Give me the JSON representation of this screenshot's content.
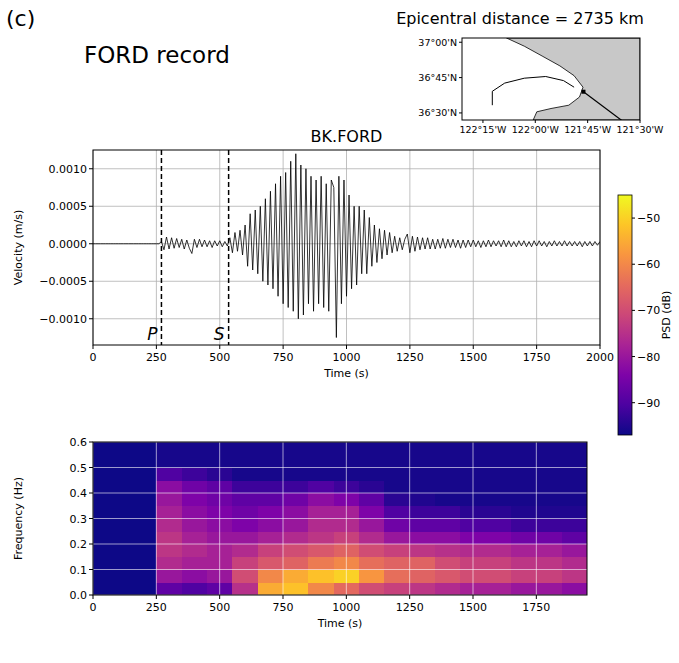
{
  "panel_label": "(c)",
  "title": "FORD record",
  "map": {
    "title": "Epicentral distance = 2735 km",
    "xlim": [
      -122.35,
      -121.5
    ],
    "ylim": [
      36.45,
      37.03
    ],
    "xticks": [
      {
        "value": -122.25,
        "label": "122°15'W"
      },
      {
        "value": -122,
        "label": "122°00'W"
      },
      {
        "value": -121.75,
        "label": "121°45'W"
      },
      {
        "value": -121.5,
        "label": "121°30'W"
      }
    ],
    "yticks": [
      {
        "value": 37,
        "label": "37°00'N"
      },
      {
        "value": 36.75,
        "label": "36°45'N"
      },
      {
        "value": 36.5,
        "label": "36°30'N"
      }
    ],
    "station": {
      "lon": -121.77,
      "lat": 36.65
    }
  },
  "chart_data": [
    {
      "type": "line",
      "title": "BK.FORD",
      "x_label": "Time (s)",
      "y_label": "Velocity (m/s)",
      "color": "#000000",
      "grid": true,
      "xlim": [
        0,
        2000
      ],
      "xticks": [
        0,
        250,
        500,
        750,
        1000,
        1250,
        1500,
        1750,
        2000
      ],
      "ylim": [
        -0.00135,
        0.00125
      ],
      "yticks": [
        {
          "value": -0.001,
          "label": "−0.0010"
        },
        {
          "value": -0.0005,
          "label": "−0.0005"
        },
        {
          "value": 0,
          "label": "0.0000"
        },
        {
          "value": 0.0005,
          "label": "0.0005"
        },
        {
          "value": 0.001,
          "label": "0.0010"
        }
      ],
      "annotations": [
        {
          "label": "P",
          "x": 270
        },
        {
          "label": "S",
          "x": 535
        }
      ],
      "x": [
        0,
        10,
        20,
        30,
        40,
        50,
        60,
        70,
        80,
        90,
        100,
        110,
        120,
        130,
        140,
        150,
        160,
        170,
        180,
        190,
        200,
        210,
        220,
        230,
        240,
        250,
        260,
        270,
        280,
        290,
        300,
        310,
        320,
        330,
        340,
        350,
        360,
        370,
        380,
        390,
        400,
        410,
        420,
        430,
        440,
        450,
        460,
        470,
        480,
        490,
        500,
        510,
        520,
        530,
        540,
        550,
        560,
        570,
        580,
        590,
        600,
        610,
        620,
        630,
        640,
        650,
        660,
        670,
        680,
        690,
        700,
        710,
        720,
        730,
        740,
        750,
        760,
        770,
        780,
        790,
        800,
        810,
        820,
        830,
        840,
        850,
        860,
        870,
        880,
        890,
        900,
        910,
        920,
        930,
        940,
        950,
        960,
        970,
        980,
        990,
        1000,
        1010,
        1020,
        1030,
        1040,
        1050,
        1060,
        1070,
        1080,
        1090,
        1100,
        1110,
        1120,
        1130,
        1140,
        1150,
        1160,
        1170,
        1180,
        1190,
        1200,
        1210,
        1220,
        1230,
        1240,
        1250,
        1260,
        1270,
        1280,
        1290,
        1300,
        1310,
        1320,
        1330,
        1340,
        1350,
        1360,
        1370,
        1380,
        1390,
        1400,
        1410,
        1420,
        1430,
        1440,
        1450,
        1460,
        1470,
        1480,
        1490,
        1500,
        1510,
        1520,
        1530,
        1540,
        1550,
        1560,
        1570,
        1580,
        1590,
        1600,
        1610,
        1620,
        1630,
        1640,
        1650,
        1660,
        1670,
        1680,
        1690,
        1700,
        1710,
        1720,
        1730,
        1740,
        1750,
        1760,
        1770,
        1780,
        1790,
        1800,
        1810,
        1820,
        1830,
        1840,
        1850,
        1860,
        1870,
        1880,
        1890,
        1900,
        1910,
        1920,
        1930,
        1940,
        1950,
        1960,
        1970,
        1980,
        1990,
        2000
      ],
      "values": [
        0,
        0,
        0,
        0,
        0,
        0,
        0,
        0,
        0,
        0,
        0,
        0,
        0,
        0,
        0,
        0,
        0,
        0,
        0,
        0,
        0,
        0,
        0,
        0,
        0,
        0,
        0,
        3e-05,
        -8e-05,
        9e-05,
        -7e-05,
        8e-05,
        -6e-05,
        7e-05,
        -5e-05,
        6e-05,
        -7e-05,
        5e-05,
        -6e-05,
        -0.00013,
        6e-05,
        -5e-05,
        6e-05,
        -4e-05,
        5e-05,
        -4e-05,
        4e-05,
        -5e-05,
        4e-05,
        -3e-05,
        4e-05,
        -4e-05,
        3e-05,
        -3e-05,
        8e-05,
        -0.00012,
        0.00015,
        -0.0001,
        0.00018,
        -0.00015,
        0.00025,
        -0.0003,
        0.0004,
        -0.00035,
        0.00045,
        -0.0004,
        0.0005,
        -0.0005,
        0.0006,
        -0.00055,
        0.0007,
        -0.0006,
        0.0008,
        -0.0007,
        0.0009,
        -0.0008,
        0.00095,
        -0.00085,
        0.0011,
        -0.0009,
        0.0012,
        -0.001,
        0.00105,
        -0.00095,
        0.001,
        -0.0008,
        0.0009,
        -0.0009,
        0.00085,
        -0.0008,
        0.0009,
        -0.00085,
        0.0008,
        -0.0009,
        0.00085,
        0.00075,
        -0.00125,
        0.0009,
        -0.0008,
        0.00085,
        -0.0007,
        0.00065,
        -0.0006,
        0.0005,
        -0.00055,
        0.0005,
        -0.0004,
        0.00045,
        -0.0004,
        0.00035,
        -0.0003,
        0.00025,
        -0.00025,
        0.0002,
        -0.0002,
        0.00018,
        -0.00015,
        0.00015,
        -0.00012,
        0.0001,
        -0.0001,
        8e-05,
        -8e-05,
        6e-05,
        0.00013,
        -0.00012,
        0.0001,
        -0.0001,
        9e-05,
        -8e-05,
        8e-05,
        -7e-05,
        8e-05,
        -7e-05,
        6e-05,
        -7e-05,
        6e-05,
        -6e-05,
        7e-05,
        -6e-05,
        6e-05,
        -5e-05,
        6e-05,
        -5e-05,
        5e-05,
        -6e-05,
        5e-05,
        -5e-05,
        5e-05,
        -4e-05,
        5e-05,
        -4e-05,
        4e-05,
        -5e-05,
        4e-05,
        -4e-05,
        5e-05,
        -4e-05,
        4e-05,
        -3e-05,
        4e-05,
        -4e-05,
        5e-05,
        -4e-05,
        4e-05,
        -4e-05,
        3e-05,
        -4e-05,
        4e-05,
        -3e-05,
        4e-05,
        -4e-05,
        3e-05,
        -4e-05,
        4e-05,
        -3e-05,
        4e-05,
        -3e-05,
        3e-05,
        -4e-05,
        3e-05,
        -3e-05,
        4e-05,
        -3e-05,
        3e-05,
        -3e-05,
        4e-05,
        -3e-05,
        3e-05,
        -3e-05,
        3e-05,
        -3e-05,
        3e-05,
        -4e-05,
        3e-05,
        -3e-05,
        3e-05,
        -3e-05,
        3e-05,
        -2e-05,
        3e-05
      ]
    },
    {
      "type": "heatmap",
      "x_label": "Time (s)",
      "y_label": "Frequency (Hz)",
      "grid": true,
      "xlim": [
        0,
        1950
      ],
      "xticks": [
        0,
        250,
        500,
        750,
        1000,
        1250,
        1500,
        1750
      ],
      "ylim": [
        0,
        0.6
      ],
      "yticks": [
        {
          "value": 0,
          "label": "0.0"
        },
        0.1,
        0.2,
        0.3,
        0.4,
        0.5,
        0.6
      ],
      "x_bins": [
        250,
        350,
        450,
        550,
        650,
        750,
        850,
        950,
        1050,
        1150,
        1250,
        1350,
        1450,
        1550,
        1650,
        1750,
        1850,
        1950
      ],
      "y_bins": [
        0,
        0.05,
        0.1,
        0.15,
        0.2,
        0.25,
        0.3,
        0.35,
        0.4,
        0.45,
        0.5,
        0.55,
        0.6
      ],
      "z": [
        [
          -88,
          -90,
          -88,
          -75,
          -55,
          -52,
          -60,
          -65,
          -70,
          -72,
          -74,
          -76,
          -78,
          -78,
          -80,
          -80,
          -82
        ],
        [
          -80,
          -82,
          -80,
          -70,
          -60,
          -55,
          -52,
          -50,
          -58,
          -64,
          -66,
          -68,
          -70,
          -70,
          -72,
          -72,
          -74
        ],
        [
          -76,
          -78,
          -78,
          -72,
          -68,
          -66,
          -62,
          -60,
          -64,
          -66,
          -66,
          -70,
          -72,
          -72,
          -74,
          -74,
          -76
        ],
        [
          -74,
          -76,
          -78,
          -76,
          -72,
          -70,
          -68,
          -66,
          -70,
          -72,
          -74,
          -75,
          -76,
          -76,
          -78,
          -78,
          -80
        ],
        [
          -74,
          -78,
          -80,
          -80,
          -78,
          -76,
          -74,
          -72,
          -76,
          -80,
          -82,
          -82,
          -84,
          -84,
          -86,
          -86,
          -88
        ],
        [
          -76,
          -80,
          -82,
          -84,
          -82,
          -80,
          -76,
          -76,
          -80,
          -86,
          -88,
          -88,
          -90,
          -90,
          -92,
          -92,
          -92
        ],
        [
          -78,
          -82,
          -84,
          -86,
          -84,
          -82,
          -78,
          -78,
          -84,
          -90,
          -92,
          -92,
          -94,
          -94,
          -95,
          -95,
          -95
        ],
        [
          -80,
          -84,
          -86,
          -88,
          -88,
          -86,
          -82,
          -84,
          -88,
          -94,
          -95,
          -96,
          -96,
          -96,
          -96,
          -96,
          -96
        ],
        [
          -82,
          -86,
          -88,
          -92,
          -92,
          -92,
          -90,
          -92,
          -94,
          -96,
          -96,
          -96,
          -96,
          -96,
          -96,
          -96,
          -96
        ],
        [
          -90,
          -92,
          -94,
          -96,
          -96,
          -96,
          -96,
          -96,
          -96,
          -96,
          -96,
          -96,
          -96,
          -96,
          -96,
          -96,
          -96
        ],
        [
          -96,
          -96,
          -96,
          -96,
          -96,
          -96,
          -96,
          -96,
          -96,
          -96,
          -96,
          -96,
          -96,
          -96,
          -96,
          -96,
          -96
        ],
        [
          -96,
          -96,
          -96,
          -96,
          -96,
          -96,
          -96,
          -96,
          -96,
          -96,
          -96,
          -96,
          -96,
          -96,
          -96,
          -96,
          -96
        ]
      ],
      "zlim": [
        -97,
        -45
      ],
      "zticks": [
        {
          "value": -90,
          "label": "−90"
        },
        {
          "value": -80,
          "label": "−80"
        },
        {
          "value": -70,
          "label": "−70"
        },
        {
          "value": -60,
          "label": "−60"
        },
        {
          "value": -50,
          "label": "−50"
        }
      ],
      "zlabel": "PSD (dB)"
    }
  ]
}
